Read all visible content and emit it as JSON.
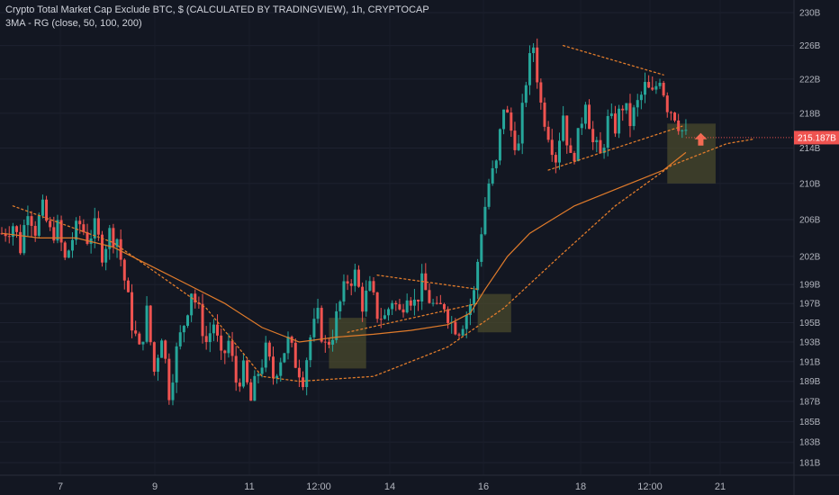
{
  "header": {
    "title": "Crypto Total Market Cap Exclude BTC, $ (CALCULATED BY TRADINGVIEW), 1h, CRYPTOCAP",
    "indicator": "3MA - RG (close, 50, 100, 200)"
  },
  "chart_data": {
    "type": "candlestick",
    "title": "Crypto Total Market Cap Exclude BTC, $ (CALCULATED BY TRADINGVIEW), 1h, CRYPTOCAP",
    "y_axis": {
      "scale": "log",
      "range_billions": [
        179,
        232
      ],
      "tick_labels": [
        "230B",
        "226B",
        "222B",
        "218B",
        "214B",
        "210B",
        "206B",
        "202B",
        "199B",
        "197B",
        "195B",
        "193B",
        "191B",
        "189B",
        "187B",
        "185B",
        "183B",
        "181B"
      ],
      "tick_values": [
        230,
        226,
        222,
        218,
        214,
        210,
        206,
        202,
        199,
        197,
        195,
        193,
        191,
        189,
        187,
        185,
        183,
        181
      ]
    },
    "x_axis": {
      "tick_labels": [
        "7",
        "9",
        "11",
        "12:00",
        "14",
        "16",
        "18",
        "12:00",
        "21"
      ]
    },
    "last_price_label": "215.187B",
    "last_price": 215.187,
    "colors": {
      "background": "#131722",
      "up": "#26a69a",
      "down": "#ef5350",
      "ma": "#e07b2b",
      "annotation": "#e07b2b",
      "box": "#4a4a2c",
      "arrow": "#f26b53",
      "price_label_bg": "#ef5350"
    },
    "price_path": [
      [
        0,
        204.5
      ],
      [
        3,
        205.5
      ],
      [
        5,
        203.0
      ],
      [
        7,
        207.5
      ],
      [
        9,
        205.0
      ],
      [
        11,
        207.0
      ],
      [
        13,
        204.5
      ],
      [
        15,
        205.0
      ],
      [
        17,
        201.5
      ],
      [
        19,
        204.0
      ],
      [
        21,
        205.5
      ],
      [
        23,
        204.0
      ],
      [
        25,
        205.0
      ],
      [
        27,
        202.5
      ],
      [
        29,
        204.5
      ],
      [
        31,
        204.0
      ],
      [
        33,
        199.5
      ],
      [
        35,
        195.0
      ],
      [
        37,
        192.0
      ],
      [
        39,
        196.0
      ],
      [
        41,
        190.0
      ],
      [
        43,
        194.0
      ],
      [
        45,
        188.0
      ],
      [
        47,
        192.0
      ],
      [
        49,
        195.0
      ],
      [
        51,
        198.5
      ],
      [
        53,
        196.0
      ],
      [
        55,
        193.0
      ],
      [
        57,
        195.0
      ],
      [
        59,
        191.0
      ],
      [
        61,
        193.0
      ],
      [
        63,
        189.0
      ],
      [
        65,
        190.0
      ],
      [
        67,
        187.0
      ],
      [
        69,
        190.0
      ],
      [
        71,
        192.0
      ],
      [
        73,
        189.5
      ],
      [
        75,
        191.5
      ],
      [
        77,
        193.0
      ],
      [
        79,
        191.0
      ],
      [
        81,
        189.5
      ],
      [
        83,
        193.5
      ],
      [
        85,
        195.5
      ],
      [
        87,
        192.5
      ],
      [
        89,
        194.0
      ],
      [
        91,
        197.0
      ],
      [
        93,
        199.5
      ],
      [
        95,
        200.0
      ],
      [
        97,
        197.0
      ],
      [
        99,
        198.5
      ],
      [
        101,
        196.0
      ],
      [
        103,
        195.5
      ],
      [
        105,
        197.5
      ],
      [
        107,
        196.0
      ],
      [
        109,
        198.5
      ],
      [
        111,
        197.0
      ],
      [
        113,
        199.0
      ],
      [
        115,
        197.5
      ],
      [
        117,
        196.0
      ],
      [
        119,
        197.0
      ],
      [
        121,
        195.0
      ],
      [
        123,
        194.5
      ],
      [
        125,
        196.0
      ],
      [
        127,
        198.0
      ],
      [
        129,
        205.0
      ],
      [
        131,
        210.0
      ],
      [
        133,
        212.0
      ],
      [
        135,
        219.0
      ],
      [
        137,
        216.0
      ],
      [
        139,
        214.0
      ],
      [
        141,
        222.0
      ],
      [
        143,
        226.0
      ],
      [
        145,
        219.0
      ],
      [
        147,
        216.0
      ],
      [
        149,
        213.0
      ],
      [
        151,
        218.0
      ],
      [
        153,
        212.5
      ],
      [
        155,
        215.0
      ],
      [
        157,
        220.0
      ],
      [
        159,
        214.5
      ],
      [
        161,
        213.0
      ],
      [
        163,
        217.0
      ],
      [
        165,
        216.5
      ],
      [
        167,
        219.0
      ],
      [
        169,
        217.0
      ],
      [
        171,
        219.0
      ],
      [
        173,
        221.0
      ],
      [
        175,
        220.0
      ],
      [
        177,
        222.5
      ],
      [
        179,
        219.0
      ],
      [
        181,
        218.0
      ],
      [
        183,
        216.0
      ],
      [
        184,
        215.2
      ]
    ],
    "moving_average": [
      [
        0,
        204.5
      ],
      [
        10,
        204.0
      ],
      [
        20,
        204.0
      ],
      [
        30,
        203.0
      ],
      [
        40,
        201.0
      ],
      [
        50,
        199.0
      ],
      [
        60,
        197.0
      ],
      [
        70,
        194.5
      ],
      [
        80,
        193.0
      ],
      [
        90,
        193.5
      ],
      [
        100,
        193.8
      ],
      [
        110,
        194.2
      ],
      [
        120,
        194.8
      ],
      [
        126,
        196.0
      ],
      [
        130,
        198.5
      ],
      [
        136,
        202.0
      ],
      [
        142,
        204.5
      ],
      [
        148,
        206.0
      ],
      [
        154,
        207.5
      ],
      [
        160,
        208.5
      ],
      [
        166,
        209.5
      ],
      [
        172,
        210.5
      ],
      [
        178,
        211.5
      ],
      [
        184,
        213.5
      ]
    ]
  }
}
